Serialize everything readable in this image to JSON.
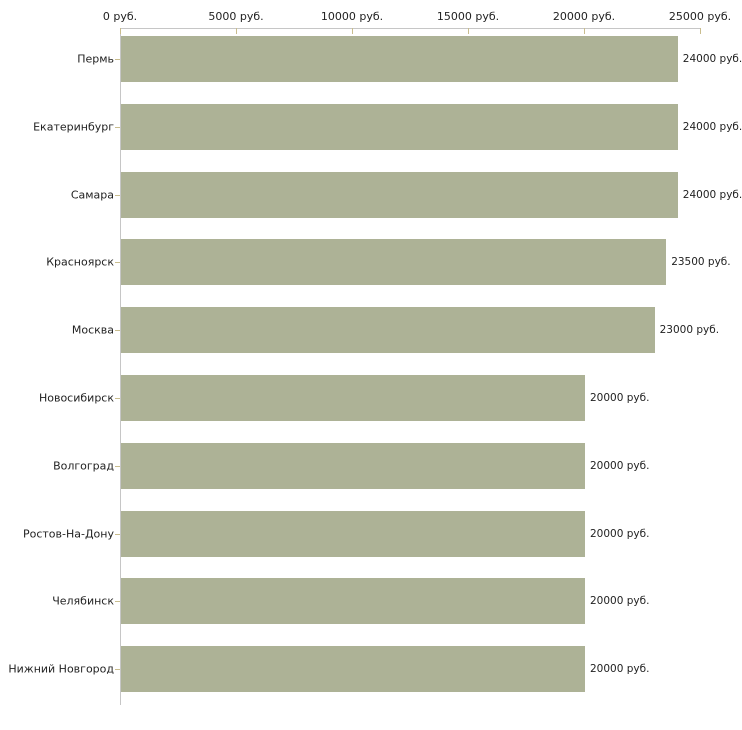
{
  "chart_data": {
    "type": "bar",
    "orientation": "horizontal",
    "title": "",
    "xlabel": "",
    "ylabel": "",
    "categories": [
      "Пермь",
      "Екатеринбург",
      "Самара",
      "Красноярск",
      "Москва",
      "Новосибирск",
      "Волгоград",
      "Ростов-На-Дону",
      "Челябинск",
      "Нижний Новгород"
    ],
    "values": [
      24000,
      24000,
      24000,
      23500,
      23000,
      20000,
      20000,
      20000,
      20000,
      20000
    ],
    "value_labels": [
      "24000 руб.",
      "24000 руб.",
      "24000 руб.",
      "23500 руб.",
      "23000 руб.",
      "20000 руб.",
      "20000 руб.",
      "20000 руб.",
      "20000 руб.",
      "20000 руб."
    ],
    "xlim": [
      0,
      25000
    ],
    "x_ticks": [
      0,
      5000,
      10000,
      15000,
      20000,
      25000
    ],
    "x_tick_labels": [
      "0 руб.",
      "5000 руб.",
      "10000 руб.",
      "15000 руб.",
      "20000 руб.",
      "25000 руб."
    ],
    "axis_position": "top",
    "grid": false,
    "legend": false,
    "colors": {
      "bar_fill": "#adb296",
      "axis_line": "#c6c6c6",
      "tick_mark": "#c9bd8e",
      "text": "#222222",
      "background": "#ffffff"
    }
  }
}
